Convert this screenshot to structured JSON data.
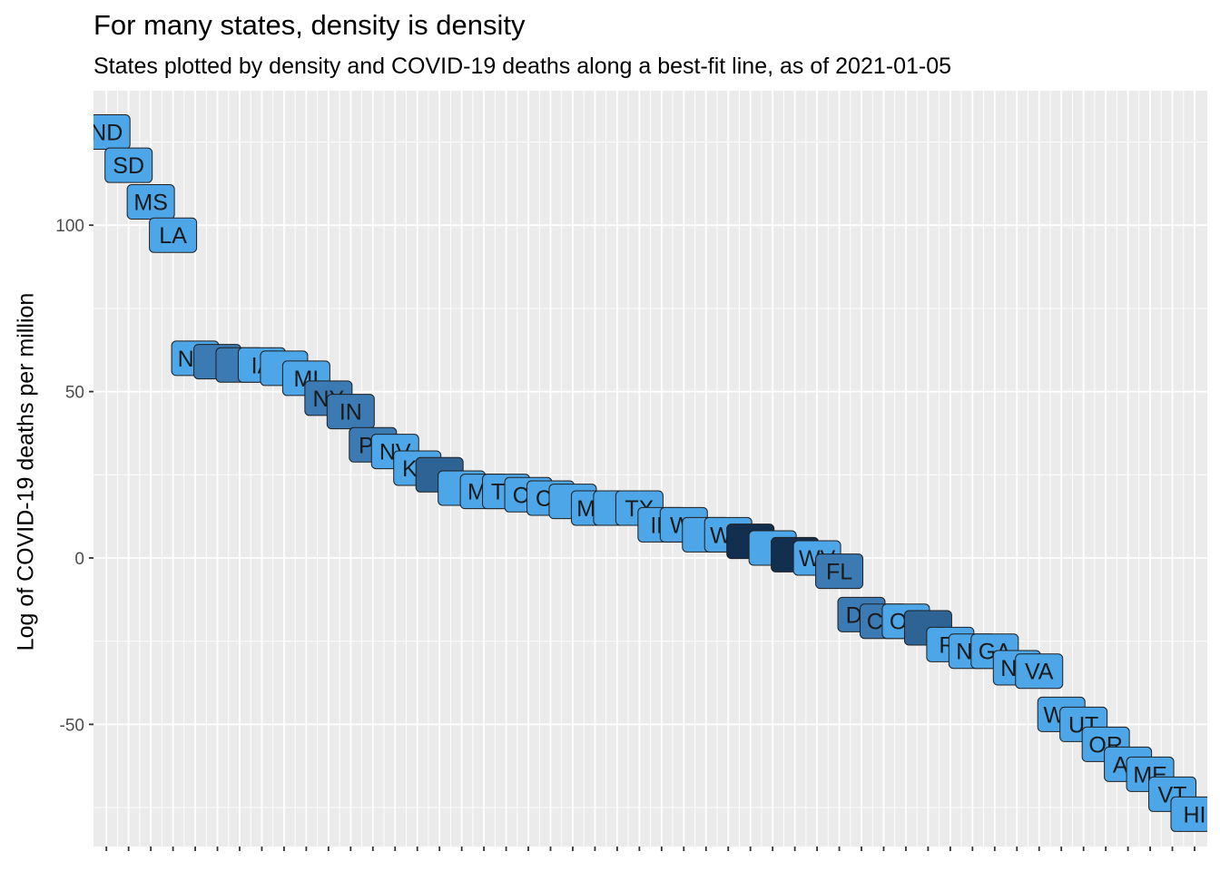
{
  "chart_data": {
    "type": "scatter",
    "title": "For many states, density is density",
    "subtitle": "States plotted by density and COVID-19 deaths along a best-fit line, as of 2021-01-05",
    "xlabel": "",
    "ylabel": "Log of COVID-19 deaths per million",
    "ylim": [
      -78,
      140
    ],
    "y_ticks": [
      -50,
      0,
      50,
      100
    ],
    "x_tick_labels_shown": false,
    "grid": true,
    "legend": "none",
    "colors": {
      "panel": "#ebebeb",
      "grid": "#ffffff",
      "label_light": "#4da6e8",
      "label_mid": "#3b7ab3",
      "label_dark": "#2e6396",
      "label_darkest": "#132f4f",
      "label_border": "#1f1f1f",
      "text": "#1a1a1a"
    },
    "points": [
      {
        "label": "ND",
        "rank": 1,
        "y": 128,
        "shade": 0
      },
      {
        "label": "SD",
        "rank": 2,
        "y": 118,
        "shade": 0
      },
      {
        "label": "MS",
        "rank": 3,
        "y": 107,
        "shade": 0
      },
      {
        "label": "LA",
        "rank": 4,
        "y": 97,
        "shade": 0
      },
      {
        "label": "NM",
        "rank": 5,
        "y": 60,
        "shade": 0
      },
      {
        "label": "",
        "rank": 6,
        "y": 59,
        "shade": 1
      },
      {
        "label": "",
        "rank": 7,
        "y": 58,
        "shade": 1
      },
      {
        "label": "IA",
        "rank": 8,
        "y": 58,
        "shade": 0
      },
      {
        "label": "",
        "rank": 9,
        "y": 57,
        "shade": 0
      },
      {
        "label": "MI",
        "rank": 10,
        "y": 54,
        "shade": 0
      },
      {
        "label": "NY",
        "rank": 11,
        "y": 48,
        "shade": 1
      },
      {
        "label": "IN",
        "rank": 12,
        "y": 44,
        "shade": 1
      },
      {
        "label": "PA",
        "rank": 13,
        "y": 34,
        "shade": 1
      },
      {
        "label": "NV",
        "rank": 14,
        "y": 32,
        "shade": 0
      },
      {
        "label": "KS",
        "rank": 15,
        "y": 27,
        "shade": 0
      },
      {
        "label": "",
        "rank": 16,
        "y": 25,
        "shade": 2
      },
      {
        "label": "",
        "rank": 17,
        "y": 21,
        "shade": 0
      },
      {
        "label": "MT",
        "rank": 18,
        "y": 20,
        "shade": 0
      },
      {
        "label": "TN",
        "rank": 19,
        "y": 20,
        "shade": 0
      },
      {
        "label": "CA",
        "rank": 20,
        "y": 19,
        "shade": 0
      },
      {
        "label": "CT",
        "rank": 21,
        "y": 18,
        "shade": 0
      },
      {
        "label": "",
        "rank": 22,
        "y": 17,
        "shade": 0
      },
      {
        "label": "MO",
        "rank": 23,
        "y": 15,
        "shade": 0
      },
      {
        "label": "",
        "rank": 24,
        "y": 15,
        "shade": 0
      },
      {
        "label": "TX",
        "rank": 25,
        "y": 15,
        "shade": 0
      },
      {
        "label": "ID",
        "rank": 26,
        "y": 10,
        "shade": 0
      },
      {
        "label": "WI",
        "rank": 27,
        "y": 10,
        "shade": 0
      },
      {
        "label": "",
        "rank": 28,
        "y": 7,
        "shade": 0
      },
      {
        "label": "WY",
        "rank": 29,
        "y": 7,
        "shade": 0
      },
      {
        "label": "",
        "rank": 30,
        "y": 5,
        "shade": 3
      },
      {
        "label": "",
        "rank": 31,
        "y": 3,
        "shade": 0
      },
      {
        "label": "",
        "rank": 32,
        "y": 1,
        "shade": 3
      },
      {
        "label": "WV",
        "rank": 33,
        "y": 0,
        "shade": 0
      },
      {
        "label": "FL",
        "rank": 34,
        "y": -4,
        "shade": 1
      },
      {
        "label": "DE",
        "rank": 35,
        "y": -17,
        "shade": 1
      },
      {
        "label": "CO",
        "rank": 36,
        "y": -19,
        "shade": 1
      },
      {
        "label": "OK",
        "rank": 37,
        "y": -19,
        "shade": 0
      },
      {
        "label": "",
        "rank": 38,
        "y": -21,
        "shade": 2
      },
      {
        "label": "RI",
        "rank": 39,
        "y": -26,
        "shade": 0
      },
      {
        "label": "NC",
        "rank": 40,
        "y": -28,
        "shade": 0
      },
      {
        "label": "GA",
        "rank": 41,
        "y": -28,
        "shade": 0
      },
      {
        "label": "NH",
        "rank": 42,
        "y": -33,
        "shade": 0
      },
      {
        "label": "VA",
        "rank": 43,
        "y": -34,
        "shade": 0
      },
      {
        "label": "WA",
        "rank": 44,
        "y": -47,
        "shade": 0
      },
      {
        "label": "UT",
        "rank": 45,
        "y": -50,
        "shade": 0
      },
      {
        "label": "OR",
        "rank": 46,
        "y": -56,
        "shade": 0
      },
      {
        "label": "AK",
        "rank": 47,
        "y": -62,
        "shade": 0
      },
      {
        "label": "ME",
        "rank": 48,
        "y": -65,
        "shade": 0
      },
      {
        "label": "VT",
        "rank": 49,
        "y": -71,
        "shade": 0
      },
      {
        "label": "HI",
        "rank": 50,
        "y": -77,
        "shade": 0
      }
    ]
  }
}
